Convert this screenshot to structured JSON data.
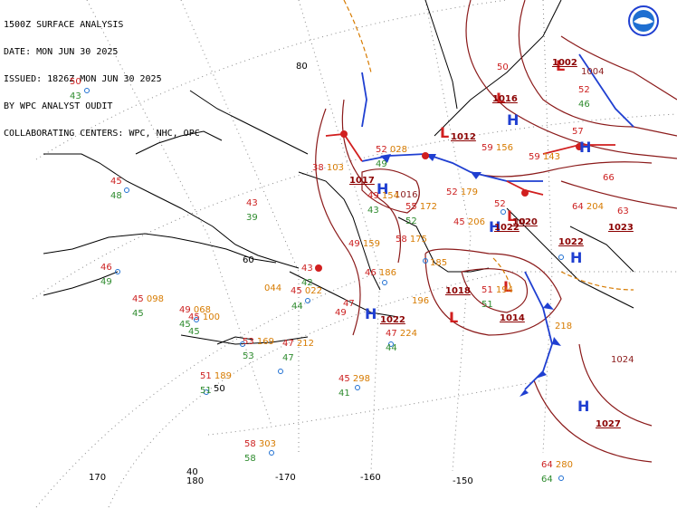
{
  "header": {
    "line1": "1500Z SURFACE ANALYSIS",
    "line2": "DATE: MON JUN 30 2025",
    "line3": "ISSUED: 1826Z MON JUN 30 2025",
    "line4": "BY WPC ANALYST OUDIT",
    "line5": "COLLABORATING CENTERS: WPC, NHC, OPC"
  },
  "logo": {
    "name": "noaa-logo"
  },
  "colors": {
    "coast": "#000000",
    "graticule": "#888888",
    "isobar": "#8b1a1a",
    "high": "#1f3fd1",
    "low": "#d11f1f",
    "cold_front": "#1f3fd1",
    "warm_front": "#d11f1f",
    "trough": "#d77b00",
    "temp": "#cc1f1f",
    "dew": "#2e8b2e",
    "pressure": "#d77b00"
  },
  "graticule_labels": [
    "80",
    "60",
    "50",
    "40",
    "170",
    "180",
    "-170",
    "-160",
    "-150"
  ],
  "pressure_centers": [
    {
      "type": "H",
      "value": "1017"
    },
    {
      "type": "H",
      "value": "1022"
    },
    {
      "type": "H",
      "value": "1022"
    },
    {
      "type": "H",
      "value": "1022"
    },
    {
      "type": "H",
      "value": ""
    },
    {
      "type": "H",
      "value": "1027"
    },
    {
      "type": "H",
      "value": "1023"
    },
    {
      "type": "L",
      "value": "1018"
    },
    {
      "type": "L",
      "value": "1014"
    },
    {
      "type": "L",
      "value": "1012"
    },
    {
      "type": "L",
      "value": "1016"
    },
    {
      "type": "L",
      "value": "1002"
    },
    {
      "type": "L",
      "value": "1020"
    }
  ],
  "isobar_labels": [
    "1024",
    "1016",
    "1020",
    "1004"
  ],
  "stations": [
    {
      "t": "50",
      "d": "43",
      "p": ""
    },
    {
      "t": "45",
      "d": "48",
      "p": ""
    },
    {
      "t": "46",
      "d": "49",
      "p": ""
    },
    {
      "t": "45",
      "d": "45",
      "p": "098"
    },
    {
      "t": "49",
      "d": "45",
      "p": "068"
    },
    {
      "t": "45",
      "d": "45",
      "p": "100"
    },
    {
      "t": "53",
      "d": "53",
      "p": "169"
    },
    {
      "t": "47",
      "d": "47",
      "p": "212"
    },
    {
      "t": "51",
      "d": "51",
      "p": "189"
    },
    {
      "t": "58",
      "d": "58",
      "p": "303"
    },
    {
      "t": "45",
      "d": "41",
      "p": "298"
    },
    {
      "t": "47",
      "d": "44",
      "p": "224"
    },
    {
      "t": "43",
      "d": "39",
      "p": ""
    },
    {
      "t": "45",
      "d": "44",
      "p": "044"
    },
    {
      "t": "43",
      "d": "42",
      "p": ""
    },
    {
      "t": "45",
      "d": "",
      "p": "022"
    },
    {
      "t": "47",
      "d": "",
      "p": ""
    },
    {
      "t": "49",
      "d": "",
      "p": ""
    },
    {
      "t": "46",
      "d": "",
      "p": "186"
    },
    {
      "t": "49",
      "d": "",
      "p": "159"
    },
    {
      "t": "49",
      "d": "43",
      "p": "154"
    },
    {
      "t": "38",
      "d": "",
      "p": "103"
    },
    {
      "t": "52",
      "d": "49",
      "p": "028"
    },
    {
      "t": "55",
      "d": "52",
      "p": "172"
    },
    {
      "t": "58",
      "d": "",
      "p": "175"
    },
    {
      "t": "52",
      "d": "",
      "p": "179"
    },
    {
      "t": "45",
      "d": "",
      "p": "206"
    },
    {
      "t": "59",
      "d": "",
      "p": "156"
    },
    {
      "t": "59",
      "d": "",
      "p": "143"
    },
    {
      "t": "52",
      "d": "",
      "p": ""
    },
    {
      "t": "64",
      "d": "",
      "p": "204"
    },
    {
      "t": "52",
      "d": "46",
      "p": ""
    },
    {
      "t": "57",
      "d": "",
      "p": ""
    },
    {
      "t": "66",
      "d": "",
      "p": ""
    },
    {
      "t": "63",
      "d": "",
      "p": ""
    },
    {
      "t": "50",
      "d": "",
      "p": ""
    },
    {
      "t": "64",
      "d": "64",
      "p": "280"
    },
    {
      "t": "51",
      "d": "51",
      "p": "194"
    },
    {
      "t": "",
      "d": "",
      "p": "185"
    },
    {
      "t": "",
      "d": "",
      "p": "218"
    },
    {
      "t": "",
      "d": "",
      "p": "196"
    }
  ]
}
